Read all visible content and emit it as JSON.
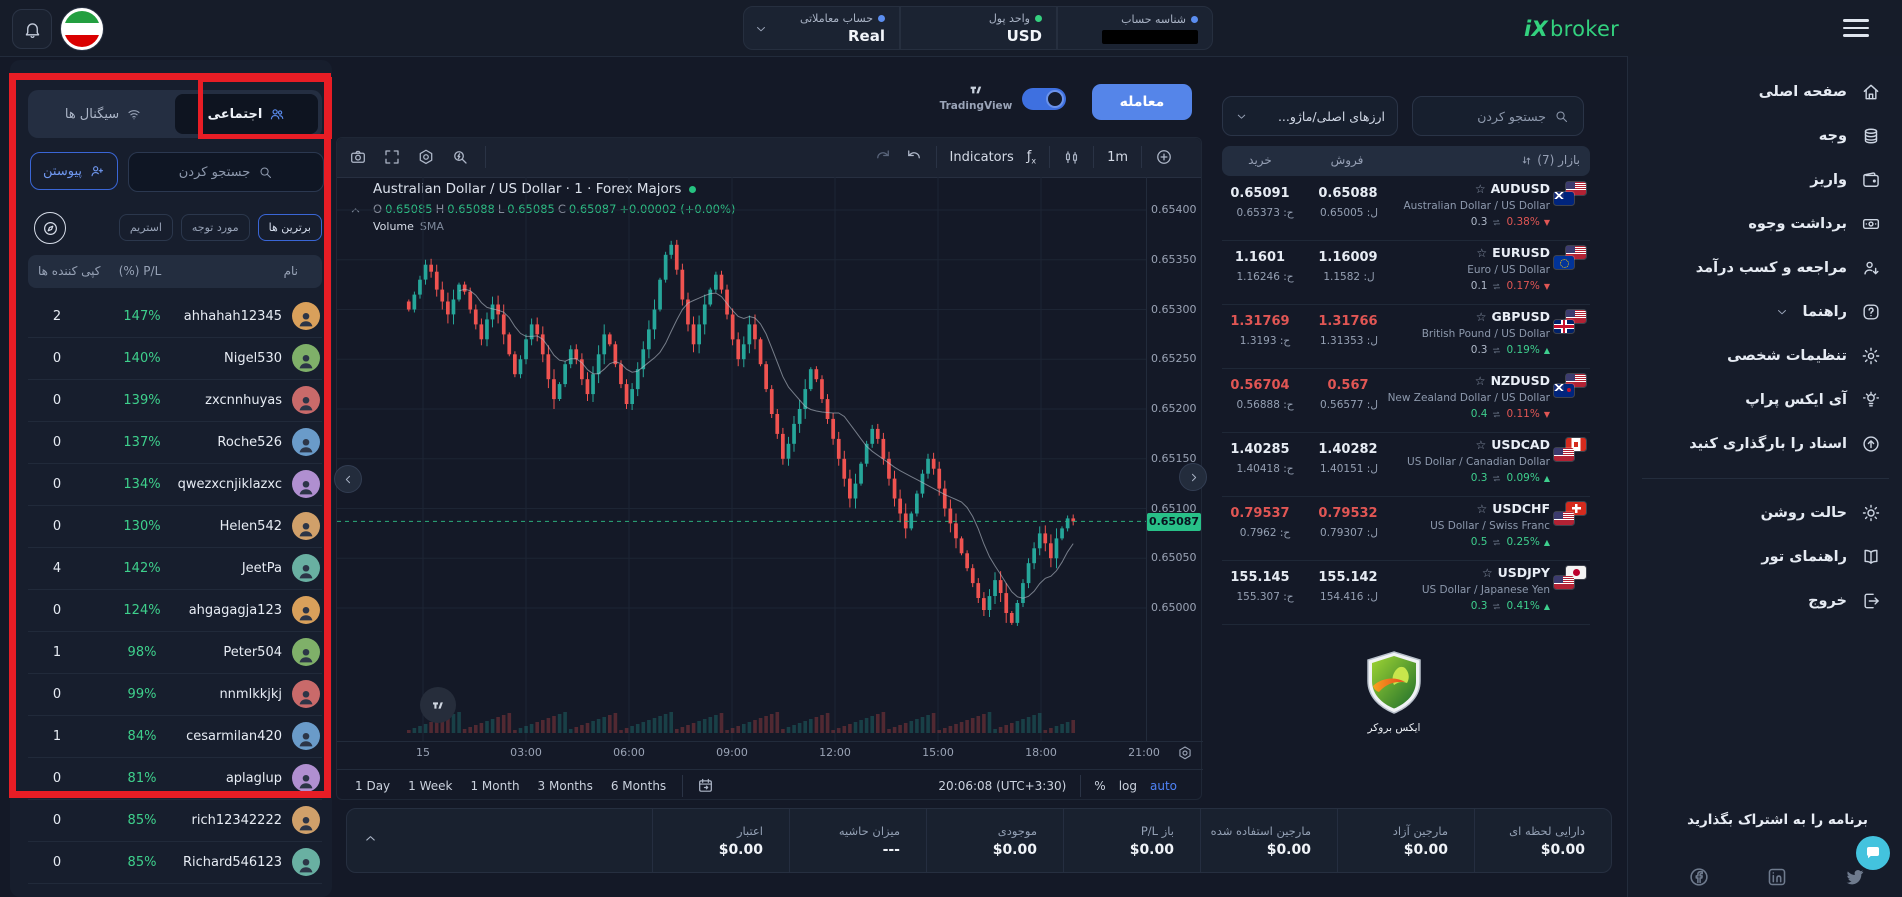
{
  "colors": {
    "accent_blue": "#5585e9",
    "green": "#2ebd85",
    "red": "#e15654",
    "annotation_red": "#e81d25",
    "candle_up": "#26a69a",
    "candle_down": "#ef5350",
    "badge_green": "#28c088",
    "chat_teal": "#43c3de",
    "logo_green": "#33d17e"
  },
  "topbar": {
    "logo_mark": "iX",
    "logo_text": "broker",
    "chips": [
      {
        "label": "حساب معاملاتی",
        "value": "Real",
        "dot": "#5b8def",
        "chevron": true,
        "redacted": false
      },
      {
        "label": "واحد پول",
        "value": "USD",
        "dot": "#35d07f",
        "chevron": false,
        "redacted": false
      },
      {
        "label": "شناسه حساب",
        "value": "",
        "dot": "#5b8def",
        "chevron": false,
        "redacted": true
      }
    ]
  },
  "social_panel": {
    "tabs": [
      {
        "label": "اجتماعی",
        "icon": "people",
        "active": true
      },
      {
        "label": "سیگنال ها",
        "icon": "wifi",
        "active": false
      }
    ],
    "join_label": "پیوستن",
    "search_placeholder": "جستجو کردن",
    "filters": [
      {
        "label": "برترین ها",
        "active": true
      },
      {
        "label": "مورد توجه",
        "active": false
      },
      {
        "label": "استریم",
        "active": false
      }
    ],
    "columns": {
      "copiers": "کپی کننده ها",
      "pl": "(%) P/L",
      "name": "نام"
    },
    "traders": [
      {
        "name": "ahhahah12345",
        "pl": "147%",
        "copiers": "2"
      },
      {
        "name": "Nigel530",
        "pl": "140%",
        "copiers": "0"
      },
      {
        "name": "zxcnnhuyas",
        "pl": "139%",
        "copiers": "0"
      },
      {
        "name": "Roche526",
        "pl": "137%",
        "copiers": "0"
      },
      {
        "name": "qwezxcnjiklazxc",
        "pl": "134%",
        "copiers": "0"
      },
      {
        "name": "Helen542",
        "pl": "130%",
        "copiers": "0"
      },
      {
        "name": "JeetPa",
        "pl": "142%",
        "copiers": "4"
      },
      {
        "name": "ahgagagja123",
        "pl": "124%",
        "copiers": "0"
      },
      {
        "name": "Peter504",
        "pl": "98%",
        "copiers": "1"
      },
      {
        "name": "nnmlkkjkj",
        "pl": "99%",
        "copiers": "0"
      },
      {
        "name": "cesarmilan420",
        "pl": "84%",
        "copiers": "1"
      },
      {
        "name": "aplaglup",
        "pl": "81%",
        "copiers": "0"
      },
      {
        "name": "rich12342222",
        "pl": "85%",
        "copiers": "0"
      },
      {
        "name": "Richard546123",
        "pl": "85%",
        "copiers": "0"
      }
    ]
  },
  "content_header": {
    "trade_button": "معامله",
    "tradingview": "TradingView",
    "toggle_on": true
  },
  "chart": {
    "toolbar": {
      "indicators": "Indicators",
      "interval": "1m"
    },
    "legend": {
      "title": "Australian Dollar / US Dollar · 1 · Forex Majors",
      "o_label": "O",
      "o": "0.65085",
      "h_label": "H",
      "h": "0.65088",
      "l_label": "L",
      "l": "0.65085",
      "c_label": "C",
      "c": "0.65087",
      "change": "+0.00002 (+0.00%)",
      "indicator": "Volume",
      "indicator_sub": "SMA"
    },
    "price_labels": [
      "0.65400",
      "0.65350",
      "0.65300",
      "0.65250",
      "0.65200",
      "0.65150",
      "0.65100",
      "0.65050",
      "0.65000"
    ],
    "time_labels": [
      "15",
      "03:00",
      "06:00",
      "09:00",
      "12:00",
      "15:00",
      "18:00",
      "21:00"
    ],
    "current_price": "0.65087",
    "ranges": [
      "1 Day",
      "1 Week",
      "1 Month",
      "3 Months",
      "6 Months"
    ],
    "clock": "20:06:08 (UTC+3:30)",
    "scales": [
      "%",
      "log",
      "auto"
    ],
    "chart_data": {
      "type": "candlestick",
      "symbol": "AUDUSD",
      "interval": "1m",
      "y_min": 0.6495,
      "y_max": 0.6542,
      "closes_e5": [
        65300,
        65315,
        65330,
        65345,
        65338,
        65320,
        65308,
        65295,
        65310,
        65325,
        65318,
        65300,
        65285,
        65270,
        65290,
        65305,
        65295,
        65275,
        65255,
        65235,
        65250,
        65270,
        65285,
        65275,
        65255,
        65230,
        65210,
        65225,
        65245,
        65260,
        65250,
        65230,
        65215,
        65235,
        65255,
        65275,
        65265,
        65245,
        65225,
        65205,
        65220,
        65240,
        65260,
        65280,
        65300,
        65330,
        65355,
        65365,
        65340,
        65310,
        65285,
        65265,
        65285,
        65305,
        65320,
        65335,
        65320,
        65295,
        65270,
        65250,
        65265,
        65285,
        65270,
        65245,
        65220,
        65195,
        65175,
        65150,
        65165,
        65185,
        65200,
        65220,
        65240,
        65230,
        65210,
        65190,
        65170,
        65150,
        65130,
        65110,
        65125,
        65145,
        65165,
        65180,
        65170,
        65150,
        65130,
        65110,
        65095,
        65080,
        65095,
        65115,
        65135,
        65150,
        65140,
        65120,
        65100,
        65085,
        65070,
        65055,
        65040,
        65025,
        65010,
        64998,
        65012,
        65028,
        65015,
        64995,
        64985,
        65005,
        65025,
        65045,
        65060,
        65075,
        65065,
        65050,
        65070,
        65080,
        65090,
        65087
      ]
    }
  },
  "watchlist": {
    "dropdown_label": "ارزهای اصلی/ماژو...",
    "search_placeholder": "جستجو کردن",
    "header": {
      "market": "بازار (7)",
      "buy": "خرید",
      "sell": "فروش"
    },
    "rows": [
      {
        "symbol": "AUDUSD",
        "name": "Australian Dollar / US Dollar",
        "buy": "0.65091",
        "high": "ح: 0.65373",
        "sell": "0.65088",
        "low": "ل: 0.65005",
        "spread": "0.3",
        "spread_green": false,
        "change": "0.38%",
        "dir": "down",
        "price_red": false,
        "base": "au",
        "quote": "us"
      },
      {
        "symbol": "EURUSD",
        "name": "Euro / US Dollar",
        "buy": "1.1601",
        "high": "ح: 1.16246",
        "sell": "1.16009",
        "low": "ل: 1.1582",
        "spread": "0.1",
        "spread_green": false,
        "change": "0.17%",
        "dir": "down",
        "price_red": false,
        "base": "eu",
        "quote": "us"
      },
      {
        "symbol": "GBPUSD",
        "name": "British Pound / US Dollar",
        "buy": "1.31769",
        "high": "ح: 1.3193",
        "sell": "1.31766",
        "low": "ل: 1.31353",
        "spread": "0.3",
        "spread_green": false,
        "change": "0.19%",
        "dir": "up",
        "price_red": true,
        "base": "gb",
        "quote": "us"
      },
      {
        "symbol": "NZDUSD",
        "name": "New Zealand Dollar / US Dollar",
        "buy": "0.56704",
        "high": "ح: 0.56888",
        "sell": "0.567",
        "low": "ل: 0.56577",
        "spread": "0.4",
        "spread_green": true,
        "change": "0.11%",
        "dir": "down",
        "price_red": true,
        "base": "nz",
        "quote": "us"
      },
      {
        "symbol": "USDCAD",
        "name": "US Dollar / Canadian Dollar",
        "buy": "1.40285",
        "high": "ح: 1.40418",
        "sell": "1.40282",
        "low": "ل: 1.40151",
        "spread": "0.3",
        "spread_green": true,
        "change": "0.09%",
        "dir": "up",
        "price_red": false,
        "base": "us",
        "quote": "ca"
      },
      {
        "symbol": "USDCHF",
        "name": "US Dollar / Swiss Franc",
        "buy": "0.79537",
        "high": "ح: 0.7962",
        "sell": "0.79532",
        "low": "ل: 0.79307",
        "spread": "0.5",
        "spread_green": true,
        "change": "0.25%",
        "dir": "up",
        "price_red": true,
        "base": "us",
        "quote": "ch"
      },
      {
        "symbol": "USDJPY",
        "name": "US Dollar / Japanese Yen",
        "buy": "155.145",
        "high": "ح: 155.307",
        "sell": "155.142",
        "low": "ل: 154.416",
        "spread": "0.3",
        "spread_green": true,
        "change": "0.41%",
        "dir": "up",
        "price_red": false,
        "base": "us",
        "quote": "jp"
      }
    ],
    "footer_logo_caption": "ایکس بروکر"
  },
  "sidebar": {
    "items": [
      {
        "label": "صفحه اصلی",
        "icon": "home",
        "chevron": false
      },
      {
        "label": "وجه",
        "icon": "coins",
        "chevron": false
      },
      {
        "label": "واریز",
        "icon": "wallet",
        "chevron": false
      },
      {
        "label": "برداشت وجوه",
        "icon": "banknote",
        "chevron": false
      },
      {
        "label": "مراجعه و کسب درآمد",
        "icon": "userarrow",
        "chevron": false
      },
      {
        "label": "راهنما",
        "icon": "help",
        "chevron": true
      },
      {
        "label": "تنظیمات شخصی",
        "icon": "gear",
        "chevron": false
      },
      {
        "label": "آی ایکس پراپ",
        "icon": "lamp",
        "chevron": false
      },
      {
        "label": "اسناد را بارگذاری کنید",
        "icon": "upload",
        "chevron": false
      }
    ],
    "secondary": [
      {
        "label": "حالت روشن",
        "icon": "sun",
        "chevron": false
      },
      {
        "label": "راهنمای تور",
        "icon": "book",
        "chevron": false
      },
      {
        "label": "خروج",
        "icon": "logout",
        "chevron": false
      }
    ]
  },
  "statsbar": {
    "items": [
      {
        "label": "دارایی لحظه ای",
        "value": "$0.00"
      },
      {
        "label": "مارجین آزاد",
        "value": "$0.00"
      },
      {
        "label": "مارجین استفاده شده",
        "value": "$0.00"
      },
      {
        "label": "باز P/L",
        "value": "$0.00"
      },
      {
        "label": "موجودی",
        "value": "$0.00"
      },
      {
        "label": "میزان حاشیه",
        "value": "---"
      },
      {
        "label": "اعتبار",
        "value": "$0.00"
      }
    ]
  },
  "share": {
    "text": "برنامه را به اشتراک بگذارید"
  }
}
